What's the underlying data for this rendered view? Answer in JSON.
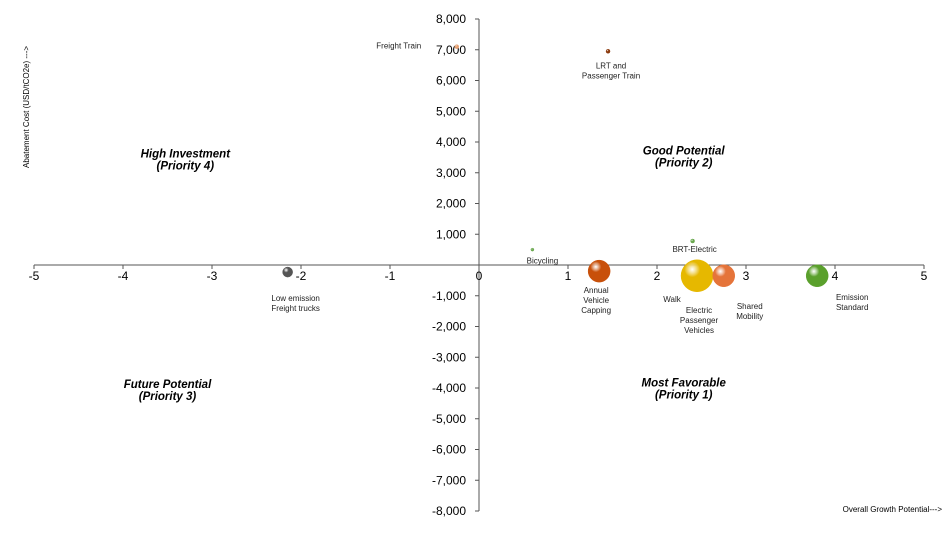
{
  "chart_data": {
    "type": "scatter",
    "subtype": "bubble",
    "xlabel": "Overall Growth Potential--->",
    "ylabel": "Abatement Cost (USD/tCO2e) --->",
    "xlim": [
      -5,
      5
    ],
    "ylim": [
      -8000,
      8000
    ],
    "x_ticks": [
      "-5",
      "-4",
      "-3",
      "-2",
      "-1",
      "0",
      "1",
      "2",
      "3",
      "4",
      "5"
    ],
    "y_ticks": [
      "8,000",
      "7,000",
      "6,000",
      "5,000",
      "4,000",
      "3,000",
      "2,000",
      "1,000",
      "-1,000",
      "-2,000",
      "-3,000",
      "-4,000",
      "-5,000",
      "-6,000",
      "-7,000",
      "-8,000"
    ],
    "grid": false,
    "points": [
      {
        "label": [
          "Freight Train"
        ],
        "x": -0.25,
        "y": 7100,
        "size": 2,
        "color": "#e8a070"
      },
      {
        "label": [
          "LRT and",
          "Passenger  Train"
        ],
        "x": 1.45,
        "y": 6950,
        "size": 2,
        "color": "#8b3a0e"
      },
      {
        "label": [
          "Bicycling"
        ],
        "x": 0.6,
        "y": 500,
        "size": 1.5,
        "color": "#6aa84f"
      },
      {
        "label": [
          "BRT-Electric"
        ],
        "x": 2.4,
        "y": 780,
        "size": 2,
        "color": "#6aa84f"
      },
      {
        "label": [
          "Low emission",
          "Freight trucks"
        ],
        "x": -2.15,
        "y": -230,
        "size": 5,
        "color": "#555555"
      },
      {
        "label": [
          "Annual",
          "Vehicle",
          "Capping"
        ],
        "x": 1.35,
        "y": -200,
        "size": 11,
        "color": "#c8500a"
      },
      {
        "label": [
          "Walk"
        ],
        "x": 2.45,
        "y": -350,
        "size": 16,
        "color": "#e6b800"
      },
      {
        "label": [
          "Electric",
          "Passenger",
          "Vehicles"
        ],
        "x": 2.45,
        "y": -350,
        "size": 0,
        "color": "#e6b800"
      },
      {
        "label": [
          "Shared",
          "Mobility"
        ],
        "x": 2.75,
        "y": -350,
        "size": 11,
        "color": "#e5743a"
      },
      {
        "label": [
          "Emission",
          "Standard"
        ],
        "x": 3.8,
        "y": -350,
        "size": 11,
        "color": "#5aa02c"
      }
    ],
    "quadrant_labels": [
      {
        "lines": [
          "High Investment",
          "(Priority 4)"
        ],
        "x": -3.3,
        "y": 3500
      },
      {
        "lines": [
          "Good Potential",
          "(Priority 2)"
        ],
        "x": 2.3,
        "y": 3600
      },
      {
        "lines": [
          "Future Potential",
          "(Priority 3)"
        ],
        "x": -3.5,
        "y": -4000
      },
      {
        "lines": [
          "Most Favorable",
          "(Priority 1)"
        ],
        "x": 2.3,
        "y": -3950
      }
    ]
  }
}
